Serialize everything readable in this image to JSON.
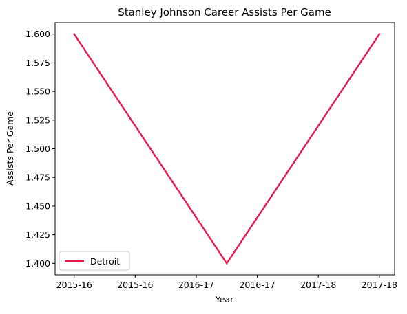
{
  "chart_data": {
    "type": "line",
    "title": "Stanley Johnson  Career Assists Per Game",
    "xlabel": "Year",
    "ylabel": "Assists Per Game",
    "x_tick_labels": [
      "2015-16",
      "2015-16",
      "2016-17",
      "2016-17",
      "2017-18",
      "2017-18"
    ],
    "x": [
      0,
      1,
      2
    ],
    "xlim": [
      -0.125,
      2.1
    ],
    "series": [
      {
        "name": "Detroit",
        "color": "#e8174a",
        "values": [
          1.6,
          1.4,
          1.6
        ]
      }
    ],
    "ylim": [
      1.39,
      1.61
    ],
    "y_ticks": [
      1.4,
      1.425,
      1.45,
      1.475,
      1.5,
      1.525,
      1.55,
      1.575,
      1.6
    ],
    "y_tick_labels": [
      "1.400",
      "1.425",
      "1.450",
      "1.475",
      "1.500",
      "1.525",
      "1.550",
      "1.575",
      "1.600"
    ],
    "grid": false,
    "legend_position": "lower-left"
  }
}
